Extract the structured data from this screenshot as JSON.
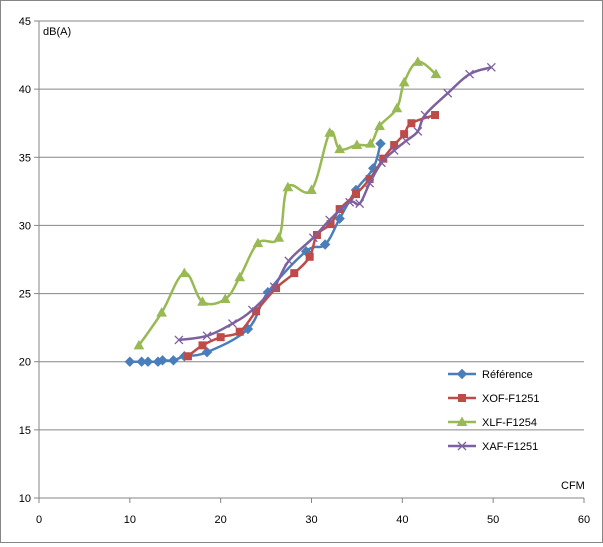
{
  "chart_data": {
    "type": "line",
    "xlabel": "CFM",
    "ylabel": "dB(A)",
    "xlim": [
      0,
      60
    ],
    "ylim": [
      10,
      45
    ],
    "x_ticks": [
      "0",
      "10",
      "20",
      "30",
      "40",
      "50",
      "60"
    ],
    "y_ticks": [
      "10",
      "15",
      "20",
      "25",
      "30",
      "35",
      "40",
      "45"
    ],
    "grid": "horizontal",
    "legend_position": "right",
    "series": [
      {
        "name": "Référence",
        "color": "#4a7ebb",
        "marker": "diamond",
        "x": [
          10.0,
          11.3,
          12.0,
          13.1,
          13.6,
          14.8,
          16.0,
          18.5,
          23.0,
          25.2,
          29.4,
          31.5,
          33.1,
          34.9,
          36.8,
          37.6
        ],
        "y": [
          20.0,
          20.0,
          20.0,
          20.0,
          20.1,
          20.1,
          20.4,
          20.7,
          22.4,
          25.1,
          28.1,
          28.6,
          30.5,
          32.6,
          34.2,
          36.0
        ]
      },
      {
        "name": "XOF-F1251",
        "color": "#be4b48",
        "marker": "square",
        "x": [
          16.4,
          18.0,
          20.0,
          22.1,
          23.9,
          26.1,
          28.1,
          29.8,
          30.6,
          32.1,
          33.1,
          34.9,
          36.4,
          37.9,
          39.1,
          40.2,
          41.0,
          43.6
        ],
        "y": [
          20.4,
          21.2,
          21.8,
          22.2,
          23.7,
          25.4,
          26.5,
          27.7,
          29.3,
          30.1,
          31.2,
          32.3,
          33.4,
          34.9,
          35.9,
          36.7,
          37.5,
          38.1
        ]
      },
      {
        "name": "XLF-F1254",
        "color": "#98b954",
        "marker": "triangle",
        "x": [
          11.0,
          13.5,
          16.0,
          18.0,
          20.5,
          22.1,
          24.1,
          26.4,
          27.4,
          30.0,
          32.0,
          33.1,
          35.0,
          36.5,
          37.5,
          39.4,
          40.2,
          41.7,
          43.7
        ],
        "y": [
          21.2,
          23.6,
          26.5,
          24.4,
          24.6,
          26.2,
          28.7,
          29.1,
          32.8,
          32.6,
          36.8,
          35.6,
          35.9,
          36.0,
          37.3,
          38.6,
          40.5,
          42.0,
          41.1
        ]
      },
      {
        "name": "XAF-F1251",
        "color": "#7d60a0",
        "marker": "x",
        "x": [
          15.4,
          18.5,
          21.3,
          23.5,
          25.9,
          27.5,
          30.2,
          32.0,
          34.2,
          35.3,
          36.4,
          37.7,
          39.1,
          40.4,
          41.7,
          42.5,
          45.0,
          47.4,
          49.8
        ],
        "y": [
          21.6,
          21.9,
          22.8,
          23.8,
          25.5,
          27.4,
          29.1,
          30.4,
          31.7,
          31.6,
          33.1,
          34.6,
          35.5,
          36.2,
          36.9,
          38.1,
          39.7,
          41.1,
          41.6
        ]
      }
    ]
  }
}
